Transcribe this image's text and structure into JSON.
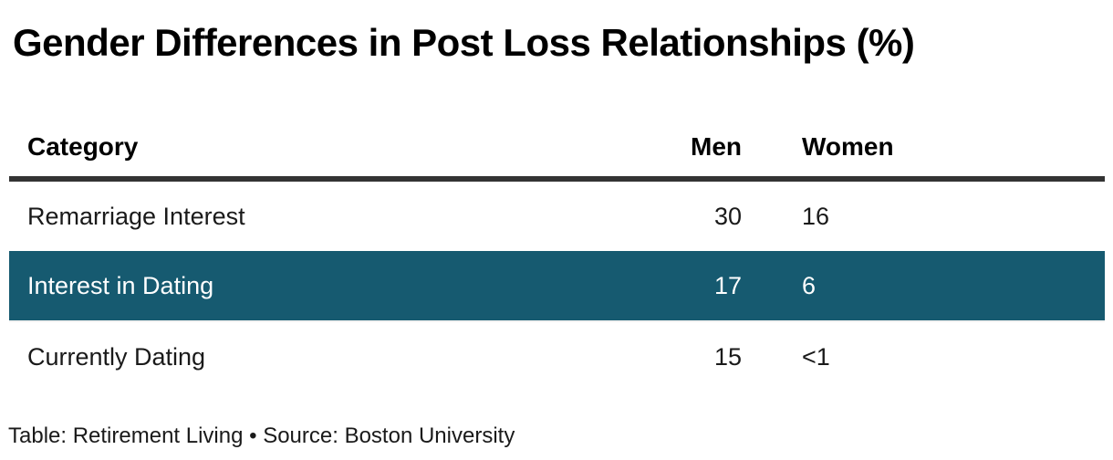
{
  "title": "Gender Differences in Post Loss Relationships (%)",
  "table": {
    "columns": [
      {
        "label": "Category",
        "align": "left"
      },
      {
        "label": "Men",
        "align": "right"
      },
      {
        "label": "Women",
        "align": "left"
      }
    ],
    "rows": [
      {
        "category": "Remarriage Interest",
        "men": "30",
        "women": "16",
        "highlighted": false
      },
      {
        "category": "Interest in Dating",
        "men": "17",
        "women": "6",
        "highlighted": true
      },
      {
        "category": "Currently Dating",
        "men": "15",
        "women": "<1",
        "highlighted": false
      }
    ]
  },
  "footer": {
    "text": "Table: Retirement Living • Source: Boston University"
  },
  "colors": {
    "highlight_row_bg": "#165a70",
    "highlight_row_text": "#ffffff",
    "header_border": "#333333",
    "text": "#1a1a1a",
    "background": "#ffffff"
  },
  "chart_data": {
    "type": "table",
    "title": "Gender Differences in Post Loss Relationships (%)",
    "columns": [
      "Category",
      "Men",
      "Women"
    ],
    "rows": [
      [
        "Remarriage Interest",
        30,
        16
      ],
      [
        "Interest in Dating",
        17,
        6
      ],
      [
        "Currently Dating",
        15,
        "<1"
      ]
    ],
    "units": "percent",
    "highlighted_row": "Interest in Dating",
    "layout_hints": {
      "men_column_align": "right",
      "women_column_align": "left",
      "header_rule": "thick dark bottom border",
      "grid": "off"
    },
    "footer": "Table: Retirement Living • Source: Boston University"
  }
}
